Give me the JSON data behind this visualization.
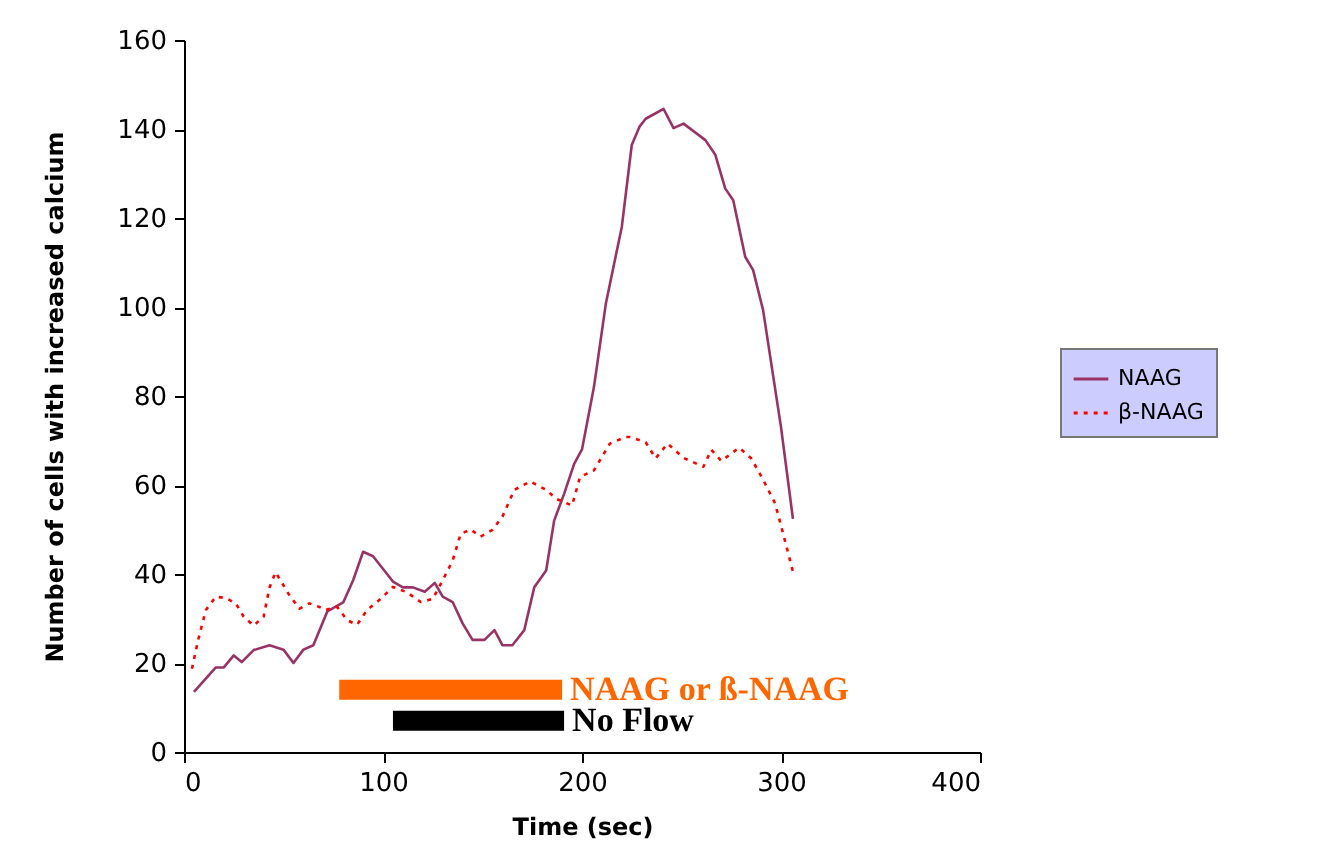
{
  "chart_data": {
    "type": "line",
    "xlabel": "Time (sec)",
    "ylabel": "Number of cells with increased calcium",
    "xlim": [
      0,
      400
    ],
    "xticks": [
      0,
      100,
      200,
      300,
      400
    ],
    "ylim": [
      0,
      160
    ],
    "yticks": [
      0,
      20,
      40,
      60,
      80,
      100,
      120,
      140,
      160
    ],
    "grid": false,
    "legend": "right",
    "marker": "none",
    "series": [
      {
        "name": "NAAG",
        "color": "#993366",
        "line_style": "solid",
        "x": [
          5,
          16,
          20,
          25,
          29,
          35,
          43,
          50,
          55,
          60,
          65,
          72,
          80,
          85,
          90,
          95,
          105,
          110,
          115,
          121,
          126,
          130,
          135,
          140,
          145,
          151,
          156,
          160,
          165,
          171,
          176,
          182,
          186,
          191,
          196,
          200,
          206,
          212,
          220,
          225,
          229,
          232,
          241,
          246,
          251,
          262,
          267,
          272,
          276,
          282,
          286,
          291,
          300,
          306
        ],
        "values": [
          13.5,
          19,
          19,
          21.7,
          20.2,
          22.9,
          24,
          23,
          20,
          23,
          24,
          31.6,
          33.6,
          38.6,
          45,
          44,
          38.3,
          37,
          37,
          36,
          38,
          34.9,
          33.7,
          28.9,
          25.2,
          25.2,
          27.4,
          24,
          24,
          27.4,
          37,
          40.8,
          52,
          58,
          64.7,
          68,
          82,
          100.8,
          118,
          136.4,
          140.6,
          142.3,
          144.5,
          140.2,
          141.2,
          137.5,
          134.2,
          126.6,
          124,
          111.3,
          108.3,
          99.3,
          73,
          52.4
        ]
      },
      {
        "name": "β-NAAG",
        "color": "#ff0000",
        "line_style": "dotted",
        "x": [
          4,
          7,
          11,
          16,
          21,
          26,
          30,
          35,
          40,
          43,
          46,
          53,
          58,
          63,
          68,
          71,
          77,
          82,
          87,
          92,
          98,
          105,
          112,
          119,
          125,
          130,
          135,
          139,
          144,
          149,
          155,
          160,
          166,
          174,
          182,
          187,
          195,
          199,
          206,
          214,
          222,
          224,
          232,
          237,
          243,
          251,
          261,
          265,
          270,
          279,
          285,
          291,
          297,
          301,
          306
        ],
        "values": [
          18.7,
          25,
          31.9,
          34.9,
          34.6,
          33.4,
          30.4,
          28.4,
          30.4,
          37,
          40.4,
          35.2,
          32.2,
          33.4,
          32.6,
          31.9,
          32.6,
          29.6,
          28.6,
          31.9,
          34.1,
          37.1,
          35.9,
          33.7,
          34.4,
          38.6,
          43,
          49,
          50,
          48.4,
          49.9,
          52.9,
          58.9,
          60.8,
          58.9,
          56.9,
          55.4,
          61.8,
          63.3,
          69.3,
          70.8,
          70.8,
          69.6,
          66,
          69.3,
          66.1,
          64.1,
          67.9,
          65.4,
          68.4,
          66,
          61.2,
          55.9,
          49.2,
          40.5
        ]
      },
      {
        "name": "NAAG or ß-NAAG",
        "color": "#ff6600",
        "line_style": "solid",
        "x": [
          78,
          190
        ],
        "values": [
          14,
          14
        ]
      },
      {
        "name": "No Flow",
        "color": "#000000",
        "line_style": "solid",
        "x": [
          105,
          191
        ],
        "values": [
          7,
          7
        ]
      }
    ]
  }
}
